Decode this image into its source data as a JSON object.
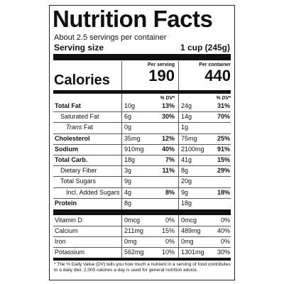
{
  "title": "Nutrition Facts",
  "servings_per_container": "About 2.5 servings per container",
  "serving_size_label": "Serving size",
  "serving_size_value": "1 cup (245g)",
  "columns": {
    "per_serving": "Per serving",
    "per_container": "Per container",
    "dv_header": "% DV*"
  },
  "calories": {
    "label": "Calories",
    "per_serving": "190",
    "per_container": "440"
  },
  "nutrients": [
    {
      "name": "Total Fat",
      "serv_amt": "10g",
      "serv_dv": "13%",
      "cont_amt": "24g",
      "cont_dv": "31%"
    },
    {
      "name": "Saturated Fat",
      "serv_amt": "6g",
      "serv_dv": "30%",
      "cont_amt": "14g",
      "cont_dv": "70%"
    },
    {
      "name_prefix": "Trans",
      "name": " Fat",
      "serv_amt": "0g",
      "serv_dv": "",
      "cont_amt": "1g",
      "cont_dv": ""
    },
    {
      "name": "Cholesterol",
      "serv_amt": "35mg",
      "serv_dv": "12%",
      "cont_amt": "75mg",
      "cont_dv": "25%"
    },
    {
      "name": "Sodium",
      "serv_amt": "910mg",
      "serv_dv": "40%",
      "cont_amt": "2100mg",
      "cont_dv": "91%"
    },
    {
      "name": "Total Carb.",
      "serv_amt": "18g",
      "serv_dv": "7%",
      "cont_amt": "41g",
      "cont_dv": "15%"
    },
    {
      "name": "Dietary Fiber",
      "serv_amt": "3g",
      "serv_dv": "11%",
      "cont_amt": "8g",
      "cont_dv": "29%"
    },
    {
      "name": "Total Sugars",
      "serv_amt": "9g",
      "serv_dv": "",
      "cont_amt": "20g",
      "cont_dv": ""
    },
    {
      "name": "Incl. Added Sugars",
      "serv_amt": "4g",
      "serv_dv": "8%",
      "cont_amt": "9g",
      "cont_dv": "18%"
    },
    {
      "name": "Protein",
      "serv_amt": "8g",
      "serv_dv": "",
      "cont_amt": "18g",
      "cont_dv": ""
    }
  ],
  "vitamins": [
    {
      "name": "Vitamin D",
      "serv_amt": "0mcg",
      "serv_dv": "0%",
      "cont_amt": "0mcg",
      "cont_dv": "0%"
    },
    {
      "name": "Calcium",
      "serv_amt": "211mg",
      "serv_dv": "15%",
      "cont_amt": "489mg",
      "cont_dv": "40%"
    },
    {
      "name": "Iron",
      "serv_amt": "0mg",
      "serv_dv": "0%",
      "cont_amt": "0mg",
      "cont_dv": "0%"
    },
    {
      "name": "Potassium",
      "serv_amt": "562mg",
      "serv_dv": "10%",
      "cont_amt": "1301mg",
      "cont_dv": "30%"
    }
  ],
  "footnote": "* The % Daily Value (DV) tells you how much a nutrient in a serving of food contributes to a daily diet. 2,000 calories a day is used for general nutrition advice."
}
